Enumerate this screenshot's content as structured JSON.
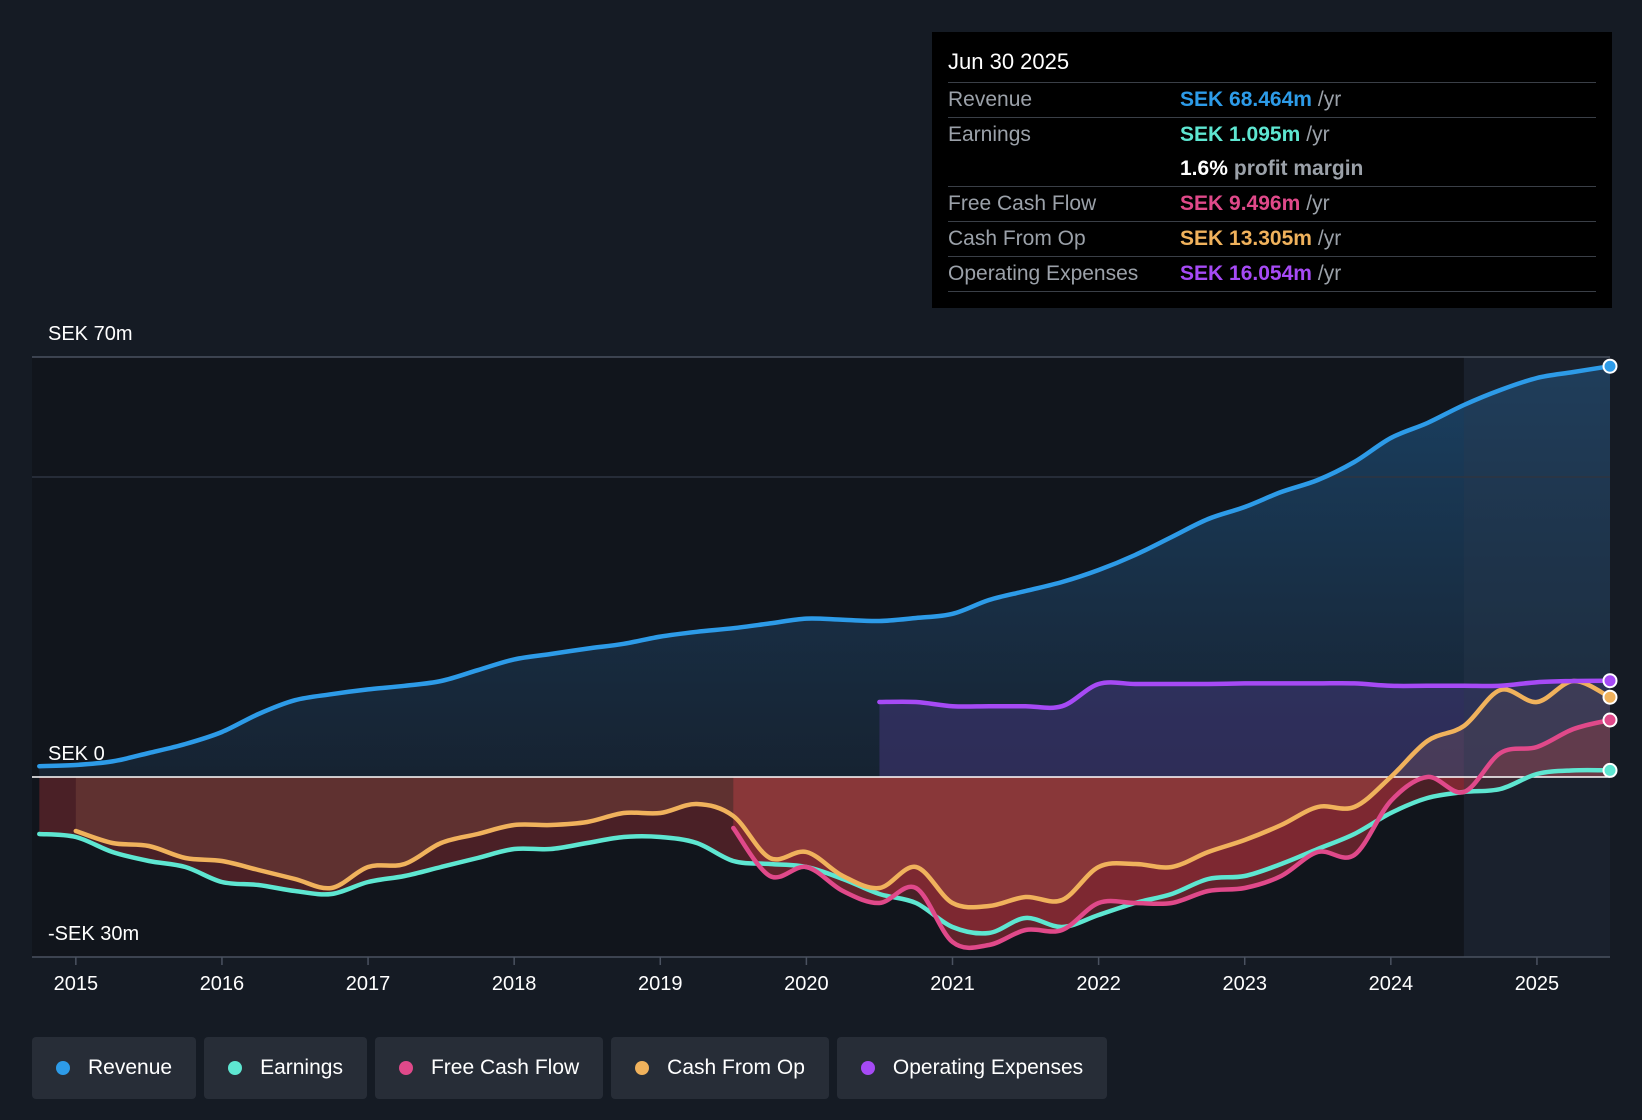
{
  "tooltip": {
    "date": "Jun 30 2025",
    "rows": [
      {
        "label": "Revenue",
        "value": "SEK 68.464m",
        "unit": "/yr",
        "color": "#2d9be8"
      },
      {
        "label": "Earnings",
        "value": "SEK 1.095m",
        "unit": "/yr",
        "color": "#5ee6d1"
      },
      {
        "label": "",
        "value": "1.6%",
        "unit": "profit margin",
        "color": "#ffffff"
      },
      {
        "label": "Free Cash Flow",
        "value": "SEK 9.496m",
        "unit": "/yr",
        "color": "#e0498a"
      },
      {
        "label": "Cash From Op",
        "value": "SEK 13.305m",
        "unit": "/yr",
        "color": "#f0b25c"
      },
      {
        "label": "Operating Expenses",
        "value": "SEK 16.054m",
        "unit": "/yr",
        "color": "#a64af5"
      }
    ]
  },
  "legend": [
    {
      "label": "Revenue",
      "color": "#2d9be8"
    },
    {
      "label": "Earnings",
      "color": "#5ee6d1"
    },
    {
      "label": "Free Cash Flow",
      "color": "#e0498a"
    },
    {
      "label": "Cash From Op",
      "color": "#f0b25c"
    },
    {
      "label": "Operating Expenses",
      "color": "#a64af5"
    }
  ],
  "chart_data": {
    "type": "area",
    "title": "",
    "xlabel": "",
    "ylabel": "",
    "y_labels": [
      "SEK 70m",
      "SEK 0",
      "-SEK 30m"
    ],
    "ylim": [
      -30,
      70
    ],
    "xlim": [
      2014.7,
      2025.5
    ],
    "x_ticks": [
      "2015",
      "2016",
      "2017",
      "2018",
      "2019",
      "2020",
      "2021",
      "2022",
      "2023",
      "2024",
      "2025"
    ],
    "highlight_from": 2024.5,
    "series": [
      {
        "name": "Revenue",
        "color": "#2d9be8",
        "x": [
          2014.75,
          2015.0,
          2015.25,
          2015.5,
          2015.75,
          2016.0,
          2016.25,
          2016.5,
          2016.75,
          2017.0,
          2017.25,
          2017.5,
          2017.75,
          2018.0,
          2018.25,
          2018.5,
          2018.75,
          2019.0,
          2019.25,
          2019.5,
          2019.75,
          2020.0,
          2020.25,
          2020.5,
          2020.75,
          2021.0,
          2021.25,
          2021.5,
          2021.75,
          2022.0,
          2022.25,
          2022.5,
          2022.75,
          2023.0,
          2023.25,
          2023.5,
          2023.75,
          2024.0,
          2024.25,
          2024.5,
          2024.75,
          2025.0,
          2025.25,
          2025.5
        ],
        "values": [
          1.8,
          2.0,
          2.6,
          4.0,
          5.5,
          7.5,
          10.5,
          12.8,
          13.8,
          14.6,
          15.2,
          16.0,
          17.8,
          19.6,
          20.5,
          21.4,
          22.2,
          23.4,
          24.2,
          24.8,
          25.6,
          26.4,
          26.2,
          26.0,
          26.5,
          27.2,
          29.5,
          31.0,
          32.5,
          34.5,
          37.0,
          40.0,
          43.0,
          45.0,
          47.5,
          49.5,
          52.5,
          56.5,
          59.0,
          62.0,
          64.5,
          66.5,
          67.5,
          68.46
        ]
      },
      {
        "name": "Earnings",
        "color": "#5ee6d1",
        "x": [
          2014.75,
          2015.0,
          2015.25,
          2015.5,
          2015.75,
          2016.0,
          2016.25,
          2016.5,
          2016.75,
          2017.0,
          2017.25,
          2017.5,
          2017.75,
          2018.0,
          2018.25,
          2018.5,
          2018.75,
          2019.0,
          2019.25,
          2019.5,
          2019.75,
          2020.0,
          2020.25,
          2020.5,
          2020.75,
          2021.0,
          2021.25,
          2021.5,
          2021.75,
          2022.0,
          2022.25,
          2022.5,
          2022.75,
          2023.0,
          2023.25,
          2023.5,
          2023.75,
          2024.0,
          2024.25,
          2024.5,
          2024.75,
          2025.0,
          2025.25,
          2025.5
        ],
        "values": [
          -9.5,
          -10.0,
          -12.5,
          -14.0,
          -15.0,
          -17.5,
          -18.0,
          -19.0,
          -19.5,
          -17.5,
          -16.5,
          -15.0,
          -13.5,
          -12.0,
          -12.0,
          -11.0,
          -10.0,
          -10.0,
          -11.0,
          -14.0,
          -14.5,
          -15.0,
          -17.0,
          -19.5,
          -21.0,
          -25.0,
          -26.0,
          -23.5,
          -25.0,
          -23.0,
          -21.0,
          -19.5,
          -17.0,
          -16.5,
          -14.5,
          -12.0,
          -9.5,
          -6.0,
          -3.5,
          -2.5,
          -2.0,
          0.5,
          1.1,
          1.1
        ]
      },
      {
        "name": "Free Cash Flow",
        "color": "#e0498a",
        "x": [
          2019.5,
          2019.75,
          2020.0,
          2020.25,
          2020.5,
          2020.75,
          2021.0,
          2021.25,
          2021.5,
          2021.75,
          2022.0,
          2022.25,
          2022.5,
          2022.75,
          2023.0,
          2023.25,
          2023.5,
          2023.75,
          2024.0,
          2024.25,
          2024.5,
          2024.75,
          2025.0,
          2025.25,
          2025.5
        ],
        "values": [
          -8.5,
          -16.5,
          -15.0,
          -19.0,
          -21.0,
          -18.5,
          -27.5,
          -28.0,
          -25.5,
          -25.5,
          -21.0,
          -21.0,
          -21.0,
          -19.0,
          -18.5,
          -16.5,
          -12.5,
          -13.0,
          -4.0,
          0.0,
          -2.5,
          4.0,
          5.0,
          8.0,
          9.5
        ]
      },
      {
        "name": "Cash From Op",
        "color": "#f0b25c",
        "x": [
          2015.0,
          2015.25,
          2015.5,
          2015.75,
          2016.0,
          2016.25,
          2016.5,
          2016.75,
          2017.0,
          2017.25,
          2017.5,
          2017.75,
          2018.0,
          2018.25,
          2018.5,
          2018.75,
          2019.0,
          2019.25,
          2019.5,
          2019.75,
          2020.0,
          2020.25,
          2020.5,
          2020.75,
          2021.0,
          2021.25,
          2021.5,
          2021.75,
          2022.0,
          2022.25,
          2022.5,
          2022.75,
          2023.0,
          2023.25,
          2023.5,
          2023.75,
          2024.0,
          2024.25,
          2024.5,
          2024.75,
          2025.0,
          2025.25,
          2025.5
        ],
        "values": [
          -9.0,
          -11.0,
          -11.5,
          -13.5,
          -14.0,
          -15.5,
          -17.0,
          -18.5,
          -15.0,
          -14.5,
          -11.0,
          -9.5,
          -8.0,
          -8.0,
          -7.5,
          -6.0,
          -6.0,
          -4.5,
          -6.5,
          -13.5,
          -12.5,
          -16.5,
          -18.5,
          -15.0,
          -21.0,
          -21.5,
          -20.0,
          -20.5,
          -15.0,
          -14.5,
          -15.0,
          -12.5,
          -10.5,
          -8.0,
          -5.0,
          -5.0,
          0.0,
          6.0,
          8.5,
          14.5,
          12.5,
          16.0,
          13.3
        ]
      },
      {
        "name": "Operating Expenses",
        "color": "#a64af5",
        "x": [
          2020.5,
          2020.75,
          2021.0,
          2021.25,
          2021.5,
          2021.75,
          2022.0,
          2022.25,
          2022.5,
          2022.75,
          2023.0,
          2023.25,
          2023.5,
          2023.75,
          2024.0,
          2024.25,
          2024.5,
          2024.75,
          2025.0,
          2025.25,
          2025.5
        ],
        "values": [
          12.5,
          12.5,
          11.8,
          11.8,
          11.8,
          11.8,
          15.5,
          15.5,
          15.5,
          15.5,
          15.6,
          15.6,
          15.6,
          15.6,
          15.2,
          15.2,
          15.2,
          15.2,
          15.8,
          16.0,
          16.05
        ]
      }
    ]
  }
}
